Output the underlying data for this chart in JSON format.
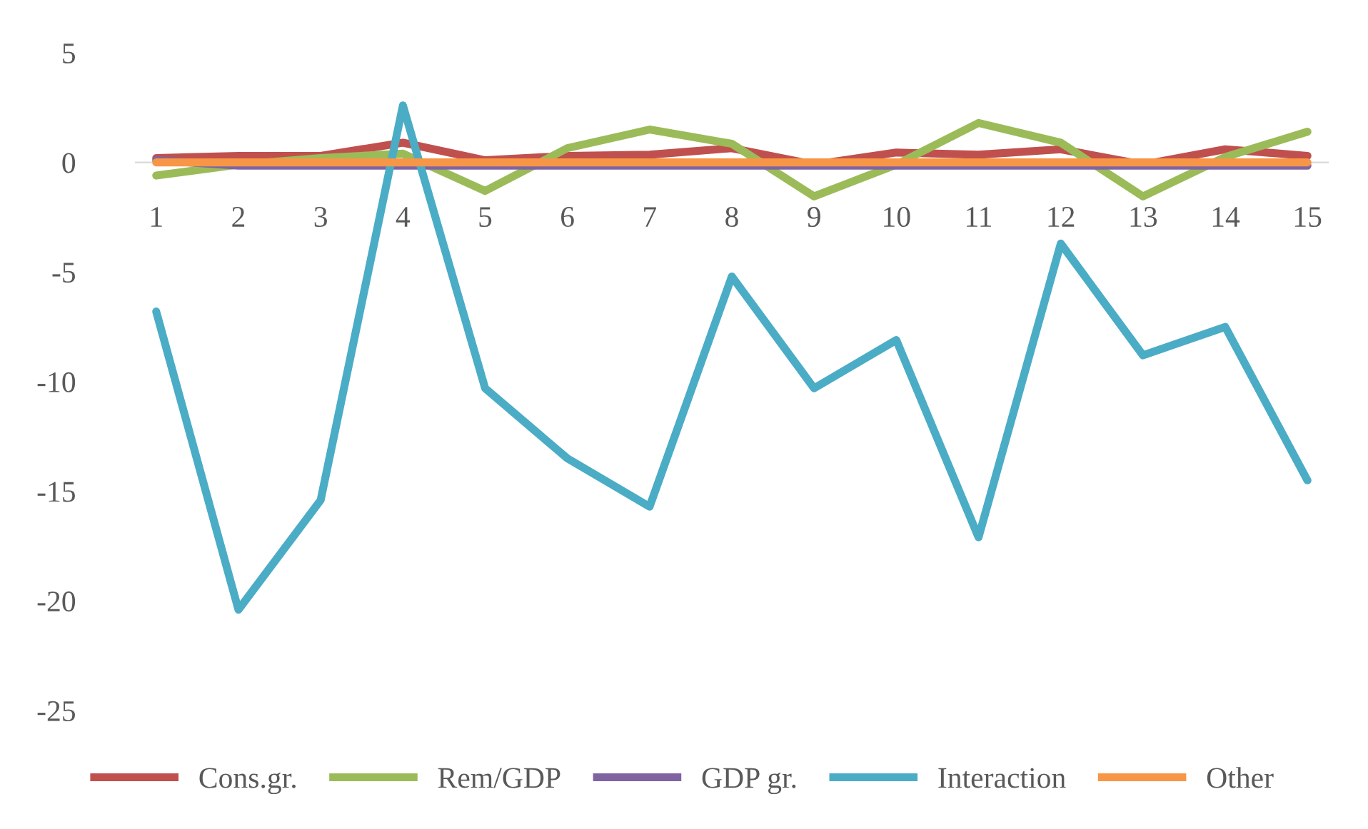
{
  "chart_data": {
    "type": "line",
    "categories": [
      "1",
      "2",
      "3",
      "4",
      "5",
      "6",
      "7",
      "8",
      "9",
      "10",
      "11",
      "12",
      "13",
      "14",
      "15"
    ],
    "series": [
      {
        "name": "Cons.gr.",
        "color": "#c0504d",
        "values": [
          0.2,
          0.3,
          0.3,
          0.9,
          0.1,
          0.3,
          0.35,
          0.65,
          -0.1,
          0.45,
          0.35,
          0.6,
          -0.1,
          0.6,
          0.3
        ]
      },
      {
        "name": "Rem/GDP",
        "color": "#9bbb59",
        "values": [
          -0.6,
          -0.1,
          0.2,
          0.4,
          -1.3,
          0.65,
          1.5,
          0.85,
          -1.55,
          -0.1,
          1.8,
          0.9,
          -1.55,
          0.25,
          1.4
        ]
      },
      {
        "name": "GDP gr.",
        "color": "#8064a2",
        "values": [
          0.1,
          -0.15,
          -0.15,
          -0.15,
          -0.15,
          -0.15,
          -0.15,
          -0.15,
          -0.15,
          -0.15,
          -0.15,
          -0.15,
          -0.15,
          -0.15,
          -0.15
        ]
      },
      {
        "name": "Interaction",
        "color": "#4bacc6",
        "values": [
          -6.8,
          -20.4,
          -15.4,
          2.6,
          -10.3,
          -13.5,
          -15.7,
          -5.2,
          -10.3,
          -8.1,
          -17.1,
          -3.7,
          -8.8,
          -7.5,
          -14.5
        ]
      },
      {
        "name": "Other",
        "color": "#f79646",
        "values": [
          0.0,
          0.0,
          0.0,
          0.0,
          0.0,
          0.0,
          0.0,
          0.0,
          0.0,
          0.0,
          0.0,
          0.0,
          0.0,
          0.0,
          0.0
        ]
      }
    ],
    "ylim": [
      -25,
      5
    ],
    "yticks": [
      -25,
      -20,
      -15,
      -10,
      -5,
      0,
      5
    ],
    "grid": false,
    "legend": "bottom",
    "marker": "none",
    "line_style": "solid"
  }
}
